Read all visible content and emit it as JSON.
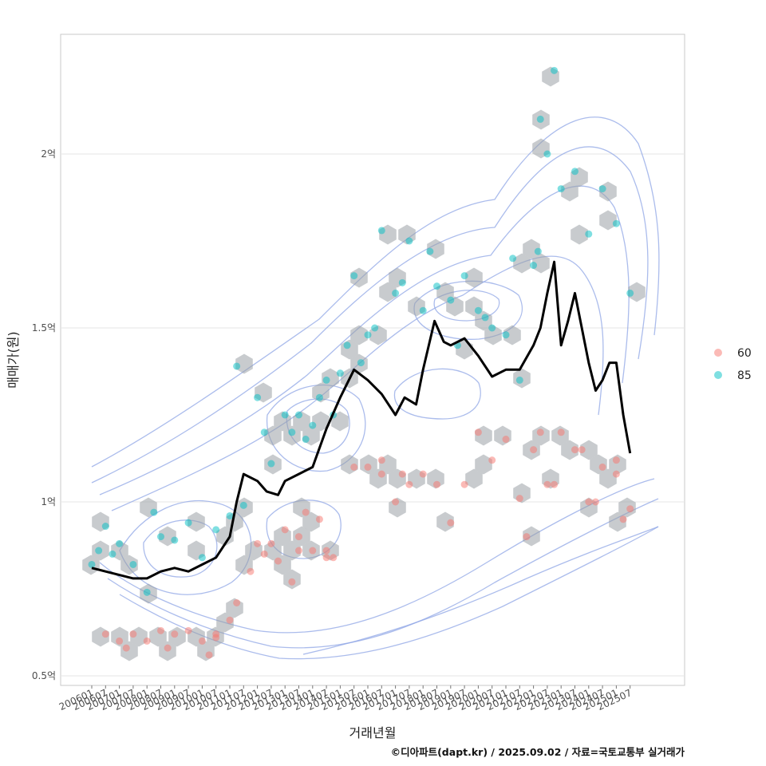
{
  "chart_data": {
    "type": "scatter",
    "title": "",
    "xlabel": "거래년월",
    "ylabel": "매매가(원)",
    "caption": "©디아파트(dapt.kr) / 2025.09.02 / 자료=국토교통부 실거래가",
    "xlim": [
      "2006-01",
      "2025-07"
    ],
    "ylim": [
      0.48,
      2.35
    ],
    "y_unit": "억",
    "x_ticks": [
      "200601",
      "200607",
      "200701",
      "200707",
      "200801",
      "200807",
      "200901",
      "200907",
      "201001",
      "201007",
      "201101",
      "201107",
      "201201",
      "201207",
      "201301",
      "201307",
      "201401",
      "201407",
      "201501",
      "201507",
      "201601",
      "201607",
      "201701",
      "201707",
      "201801",
      "201807",
      "201901",
      "201907",
      "202001",
      "202007",
      "202101",
      "202107",
      "202201",
      "202207",
      "202301",
      "202307",
      "202401",
      "202407",
      "202501",
      "202507"
    ],
    "y_ticks": [
      {
        "value": 0.5,
        "label": "0.5억"
      },
      {
        "value": 1.0,
        "label": "1억"
      },
      {
        "value": 1.5,
        "label": "1.5억"
      },
      {
        "value": 2.0,
        "label": "2억"
      }
    ],
    "grid": true,
    "legend": {
      "placement": "right",
      "entries": [
        {
          "name": "60",
          "color": "#F8766D"
        },
        {
          "name": "85",
          "color": "#00BFC4"
        }
      ]
    },
    "colors": {
      "series_60": "#F8766D",
      "series_85": "#00BFC4",
      "trend": "#000000",
      "hex": "#9aa0a6",
      "contour": "#8fa5e6"
    },
    "trend_line": {
      "x": [
        "2006-01",
        "2006-07",
        "2007-01",
        "2007-07",
        "2008-01",
        "2008-07",
        "2009-01",
        "2009-07",
        "2010-01",
        "2010-07",
        "2011-01",
        "2011-04",
        "2011-07",
        "2012-01",
        "2012-05",
        "2012-10",
        "2013-01",
        "2013-07",
        "2014-01",
        "2014-07",
        "2015-01",
        "2015-07",
        "2016-01",
        "2016-07",
        "2017-01",
        "2017-05",
        "2017-10",
        "2018-01",
        "2018-06",
        "2018-10",
        "2019-01",
        "2019-07",
        "2020-01",
        "2020-07",
        "2021-01",
        "2021-07",
        "2022-01",
        "2022-04",
        "2022-07",
        "2022-10",
        "2023-01",
        "2023-04",
        "2023-07",
        "2024-01",
        "2024-04",
        "2024-07",
        "2024-10",
        "2025-01",
        "2025-04",
        "2025-07"
      ],
      "y": [
        0.81,
        0.8,
        0.79,
        0.78,
        0.78,
        0.8,
        0.81,
        0.8,
        0.82,
        0.84,
        0.9,
        1.0,
        1.08,
        1.06,
        1.03,
        1.02,
        1.06,
        1.08,
        1.1,
        1.21,
        1.3,
        1.38,
        1.35,
        1.31,
        1.25,
        1.3,
        1.28,
        1.38,
        1.52,
        1.46,
        1.45,
        1.47,
        1.42,
        1.36,
        1.38,
        1.38,
        1.45,
        1.5,
        1.6,
        1.69,
        1.45,
        1.52,
        1.6,
        1.4,
        1.32,
        1.35,
        1.4,
        1.4,
        1.25,
        1.14
      ]
    },
    "series": [
      {
        "name": "60",
        "x": [
          "2006-07",
          "2007-01",
          "2007-04",
          "2007-07",
          "2008-01",
          "2008-07",
          "2008-10",
          "2009-01",
          "2009-07",
          "2010-01",
          "2010-04",
          "2010-07",
          "2011-01",
          "2011-04",
          "2011-10",
          "2012-04",
          "2012-07",
          "2012-10",
          "2013-01",
          "2013-04",
          "2013-07",
          "2013-10",
          "2014-01",
          "2014-04",
          "2014-07",
          "2014-10",
          "2015-07",
          "2016-01",
          "2016-07",
          "2017-01",
          "2017-04",
          "2017-07",
          "2018-01",
          "2018-07",
          "2019-01",
          "2019-07",
          "2020-01",
          "2020-07",
          "2021-01",
          "2021-07",
          "2022-01",
          "2022-04",
          "2022-07",
          "2023-01",
          "2023-07",
          "2024-01",
          "2024-07",
          "2025-01",
          "2025-04",
          "2025-07",
          "2010-07",
          "2012-01",
          "2013-07",
          "2014-07",
          "2016-07",
          "2021-10",
          "2022-10",
          "2023-10",
          "2024-04",
          "2025-01"
        ],
        "y": [
          0.62,
          0.6,
          0.58,
          0.62,
          0.6,
          0.63,
          0.58,
          0.62,
          0.63,
          0.6,
          0.56,
          0.61,
          0.66,
          0.71,
          0.8,
          0.85,
          0.88,
          0.83,
          0.92,
          0.77,
          0.86,
          0.97,
          0.86,
          0.95,
          0.86,
          0.84,
          1.1,
          1.1,
          1.12,
          1.0,
          1.08,
          1.05,
          1.08,
          1.05,
          0.94,
          1.05,
          1.2,
          1.12,
          1.18,
          1.01,
          1.15,
          1.2,
          1.05,
          1.2,
          1.15,
          1.0,
          1.1,
          1.08,
          0.95,
          0.98,
          0.62,
          0.88,
          0.9,
          0.84,
          1.08,
          0.9,
          1.05,
          1.15,
          1.0,
          1.12
        ]
      },
      {
        "name": "85",
        "x": [
          "2006-01",
          "2006-04",
          "2006-07",
          "2006-10",
          "2007-01",
          "2007-07",
          "2008-01",
          "2008-04",
          "2008-07",
          "2009-01",
          "2009-07",
          "2010-01",
          "2010-07",
          "2011-01",
          "2011-07",
          "2012-01",
          "2012-07",
          "2013-01",
          "2013-04",
          "2013-07",
          "2013-10",
          "2014-01",
          "2014-04",
          "2014-07",
          "2015-01",
          "2015-04",
          "2015-07",
          "2016-01",
          "2016-07",
          "2017-01",
          "2017-07",
          "2018-01",
          "2018-07",
          "2019-01",
          "2019-07",
          "2020-01",
          "2020-07",
          "2021-01",
          "2021-07",
          "2022-01",
          "2022-04",
          "2022-07",
          "2022-10",
          "2023-01",
          "2023-07",
          "2024-01",
          "2024-07",
          "2025-01",
          "2025-07",
          "2011-04",
          "2012-04",
          "2014-10",
          "2015-10",
          "2016-04",
          "2017-04",
          "2018-04",
          "2019-04",
          "2020-04",
          "2021-04",
          "2022-03"
        ],
        "y": [
          0.82,
          0.86,
          0.93,
          0.85,
          0.88,
          0.82,
          0.74,
          0.97,
          0.9,
          0.89,
          0.94,
          0.84,
          0.92,
          0.96,
          0.99,
          1.3,
          1.11,
          1.25,
          1.2,
          1.25,
          1.18,
          1.22,
          1.3,
          1.35,
          1.37,
          1.45,
          1.65,
          1.48,
          1.78,
          1.6,
          1.75,
          1.55,
          1.62,
          1.58,
          1.65,
          1.55,
          1.5,
          1.48,
          1.35,
          1.68,
          2.1,
          2.0,
          2.24,
          1.9,
          1.95,
          1.77,
          1.9,
          1.8,
          1.6,
          1.39,
          1.2,
          1.25,
          1.4,
          1.5,
          1.63,
          1.72,
          1.45,
          1.53,
          1.7,
          1.72
        ]
      }
    ]
  }
}
